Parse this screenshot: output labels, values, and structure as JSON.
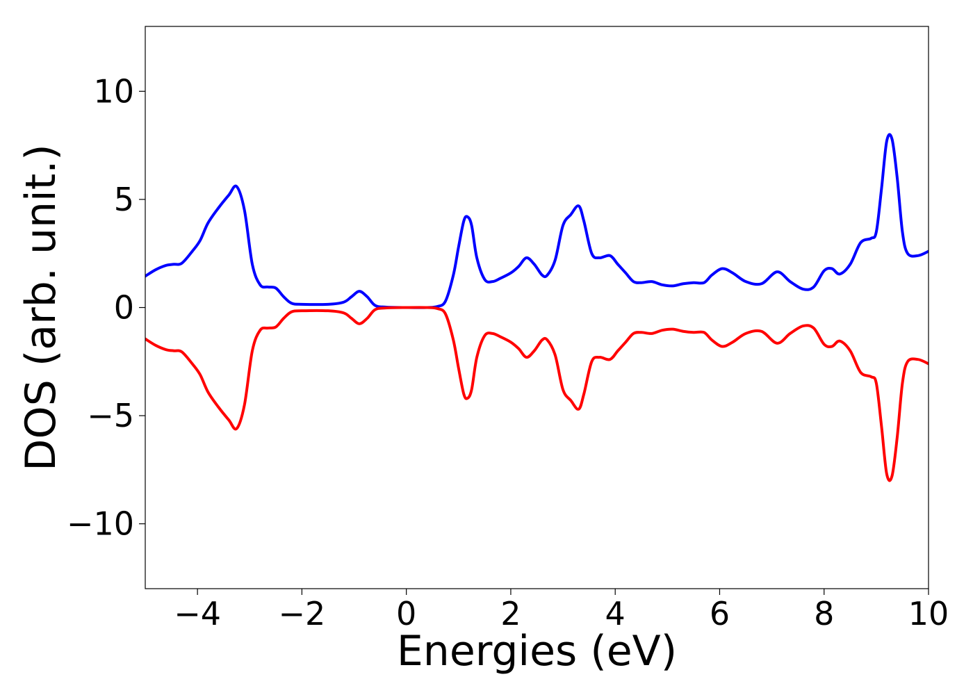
{
  "chart_data": {
    "type": "line",
    "xlabel": "Energies (eV)",
    "ylabel": "DOS (arb. unit.)",
    "xlim": [
      -5,
      10
    ],
    "ylim": [
      -13,
      13
    ],
    "xticks": [
      -4,
      -2,
      0,
      2,
      4,
      6,
      8,
      10
    ],
    "xtick_labels": [
      "−4",
      "−2",
      "0",
      "2",
      "4",
      "6",
      "8",
      "10"
    ],
    "yticks": [
      -10,
      -5,
      0,
      5,
      10
    ],
    "ytick_labels": [
      "−10",
      "−5",
      "0",
      "5",
      "10"
    ],
    "grid": false,
    "series": [
      {
        "color": "#0000ff",
        "x": [
          -5.0,
          -4.8,
          -4.6,
          -4.45,
          -4.3,
          -4.1,
          -3.95,
          -3.8,
          -3.6,
          -3.4,
          -3.25,
          -3.1,
          -2.95,
          -2.8,
          -2.65,
          -2.5,
          -2.35,
          -2.2,
          -2.0,
          -1.5,
          -1.2,
          -1.05,
          -0.9,
          -0.75,
          -0.6,
          -0.4,
          0.0,
          0.4,
          0.6,
          0.75,
          0.9,
          1.0,
          1.1,
          1.17,
          1.25,
          1.35,
          1.5,
          1.65,
          1.8,
          2.0,
          2.15,
          2.3,
          2.45,
          2.6,
          2.7,
          2.85,
          3.0,
          3.15,
          3.3,
          3.4,
          3.55,
          3.7,
          3.9,
          4.05,
          4.2,
          4.35,
          4.5,
          4.7,
          4.9,
          5.1,
          5.3,
          5.5,
          5.7,
          5.85,
          6.05,
          6.25,
          6.5,
          6.8,
          7.1,
          7.35,
          7.6,
          7.8,
          8.0,
          8.15,
          8.3,
          8.5,
          8.7,
          8.9,
          9.0,
          9.1,
          9.2,
          9.3,
          9.4,
          9.5,
          9.6,
          9.8,
          10.0
        ],
        "y": [
          1.45,
          1.75,
          1.95,
          2.0,
          2.05,
          2.6,
          3.1,
          3.9,
          4.6,
          5.2,
          5.6,
          4.5,
          2.0,
          1.05,
          0.95,
          0.9,
          0.5,
          0.2,
          0.15,
          0.15,
          0.25,
          0.5,
          0.75,
          0.5,
          0.1,
          0.02,
          0.0,
          0.0,
          0.05,
          0.3,
          1.5,
          2.8,
          4.0,
          4.2,
          3.8,
          2.3,
          1.3,
          1.2,
          1.35,
          1.6,
          1.9,
          2.3,
          2.0,
          1.5,
          1.5,
          2.2,
          3.8,
          4.3,
          4.7,
          4.0,
          2.5,
          2.3,
          2.4,
          2.0,
          1.6,
          1.2,
          1.15,
          1.2,
          1.05,
          1.0,
          1.1,
          1.15,
          1.15,
          1.5,
          1.8,
          1.6,
          1.2,
          1.1,
          1.65,
          1.2,
          0.85,
          0.95,
          1.7,
          1.8,
          1.55,
          2.0,
          3.0,
          3.2,
          3.5,
          5.5,
          7.7,
          7.8,
          6.0,
          3.5,
          2.5,
          2.4,
          2.6
        ]
      },
      {
        "color": "#ff0000",
        "x": [
          -5.0,
          -4.8,
          -4.6,
          -4.45,
          -4.3,
          -4.1,
          -3.95,
          -3.8,
          -3.6,
          -3.4,
          -3.25,
          -3.1,
          -2.95,
          -2.8,
          -2.65,
          -2.5,
          -2.35,
          -2.2,
          -2.0,
          -1.5,
          -1.2,
          -1.05,
          -0.9,
          -0.75,
          -0.6,
          -0.4,
          0.0,
          0.4,
          0.6,
          0.75,
          0.9,
          1.0,
          1.1,
          1.17,
          1.25,
          1.35,
          1.5,
          1.65,
          1.8,
          2.0,
          2.15,
          2.3,
          2.45,
          2.6,
          2.7,
          2.85,
          3.0,
          3.15,
          3.3,
          3.4,
          3.55,
          3.7,
          3.9,
          4.05,
          4.2,
          4.35,
          4.5,
          4.7,
          4.9,
          5.1,
          5.3,
          5.5,
          5.7,
          5.85,
          6.05,
          6.25,
          6.5,
          6.8,
          7.1,
          7.35,
          7.6,
          7.8,
          8.0,
          8.15,
          8.3,
          8.5,
          8.7,
          8.9,
          9.0,
          9.1,
          9.2,
          9.3,
          9.4,
          9.5,
          9.6,
          9.8,
          10.0
        ],
        "y": [
          -1.45,
          -1.75,
          -1.95,
          -2.0,
          -2.05,
          -2.6,
          -3.1,
          -3.9,
          -4.6,
          -5.2,
          -5.6,
          -4.5,
          -2.0,
          -1.05,
          -0.95,
          -0.9,
          -0.5,
          -0.2,
          -0.15,
          -0.15,
          -0.25,
          -0.5,
          -0.75,
          -0.5,
          -0.1,
          -0.02,
          0.0,
          0.0,
          -0.05,
          -0.3,
          -1.5,
          -2.8,
          -4.0,
          -4.2,
          -3.8,
          -2.3,
          -1.3,
          -1.2,
          -1.35,
          -1.6,
          -1.9,
          -2.3,
          -2.0,
          -1.5,
          -1.5,
          -2.2,
          -3.8,
          -4.3,
          -4.7,
          -4.0,
          -2.5,
          -2.3,
          -2.4,
          -2.0,
          -1.6,
          -1.2,
          -1.15,
          -1.2,
          -1.05,
          -1.0,
          -1.1,
          -1.15,
          -1.15,
          -1.5,
          -1.8,
          -1.6,
          -1.2,
          -1.1,
          -1.65,
          -1.2,
          -0.85,
          -0.95,
          -1.7,
          -1.8,
          -1.55,
          -2.0,
          -3.0,
          -3.2,
          -3.5,
          -5.5,
          -7.7,
          -7.8,
          -6.0,
          -3.5,
          -2.5,
          -2.4,
          -2.6
        ]
      }
    ]
  }
}
